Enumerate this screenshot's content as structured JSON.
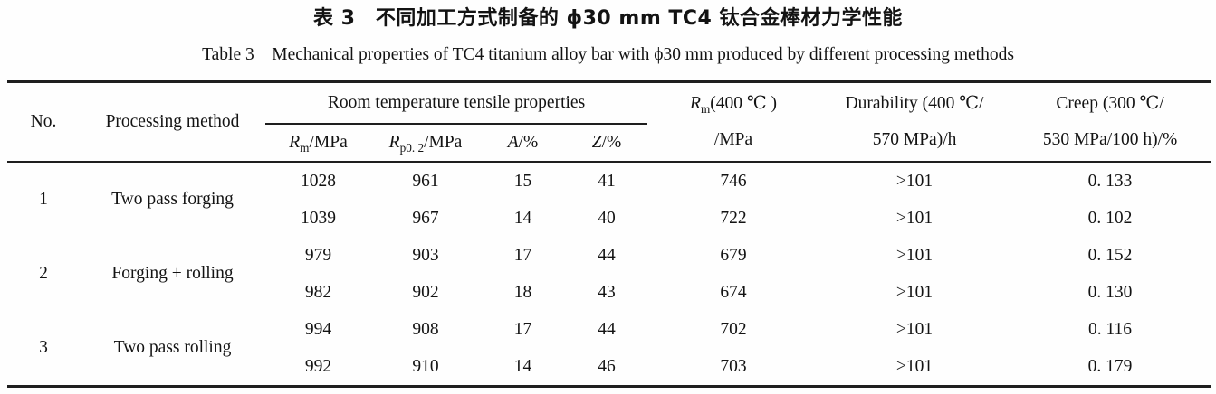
{
  "caption": {
    "zh": "表 3　不同加工方式制备的 ϕ30 mm TC4 钛合金棒材力学性能",
    "en": "Table 3 Mechanical properties of TC4 titanium alloy bar with ϕ30 mm produced by different processing methods"
  },
  "table": {
    "header": {
      "no": "No.",
      "processing_method": "Processing method",
      "tensile_group": "Room temperature tensile properties",
      "rm": {
        "base": "R",
        "sub": "m",
        "rest": "/MPa"
      },
      "rp02": {
        "base": "R",
        "sub": "p0. 2",
        "rest": "/MPa"
      },
      "a": {
        "base": "A",
        "rest": "/%"
      },
      "z": {
        "base": "Z",
        "rest": "/%"
      },
      "rm400": {
        "base": "R",
        "sub": "m",
        "rest": "(400 ℃ )",
        "line2": "/MPa"
      },
      "durability": {
        "line1": "Durability (400 ℃/",
        "line2": "570 MPa)/h"
      },
      "creep": {
        "line1": "Creep (300 ℃/",
        "line2": "530 MPa/100 h)/%"
      }
    },
    "groups": [
      {
        "no": "1",
        "method": "Two pass forging",
        "rows": [
          {
            "rm": "1028",
            "rp02": "961",
            "a": "15",
            "z": "41",
            "rm400": "746",
            "durability": ">101",
            "creep": "0. 133"
          },
          {
            "rm": "1039",
            "rp02": "967",
            "a": "14",
            "z": "40",
            "rm400": "722",
            "durability": ">101",
            "creep": "0. 102"
          }
        ]
      },
      {
        "no": "2",
        "method": "Forging + rolling",
        "rows": [
          {
            "rm": "979",
            "rp02": "903",
            "a": "17",
            "z": "44",
            "rm400": "679",
            "durability": ">101",
            "creep": "0. 152"
          },
          {
            "rm": "982",
            "rp02": "902",
            "a": "18",
            "z": "43",
            "rm400": "674",
            "durability": ">101",
            "creep": "0. 130"
          }
        ]
      },
      {
        "no": "3",
        "method": "Two pass rolling",
        "rows": [
          {
            "rm": "994",
            "rp02": "908",
            "a": "17",
            "z": "44",
            "rm400": "702",
            "durability": ">101",
            "creep": "0. 116"
          },
          {
            "rm": "992",
            "rp02": "910",
            "a": "14",
            "z": "46",
            "rm400": "703",
            "durability": ">101",
            "creep": "0. 179"
          }
        ]
      }
    ]
  }
}
